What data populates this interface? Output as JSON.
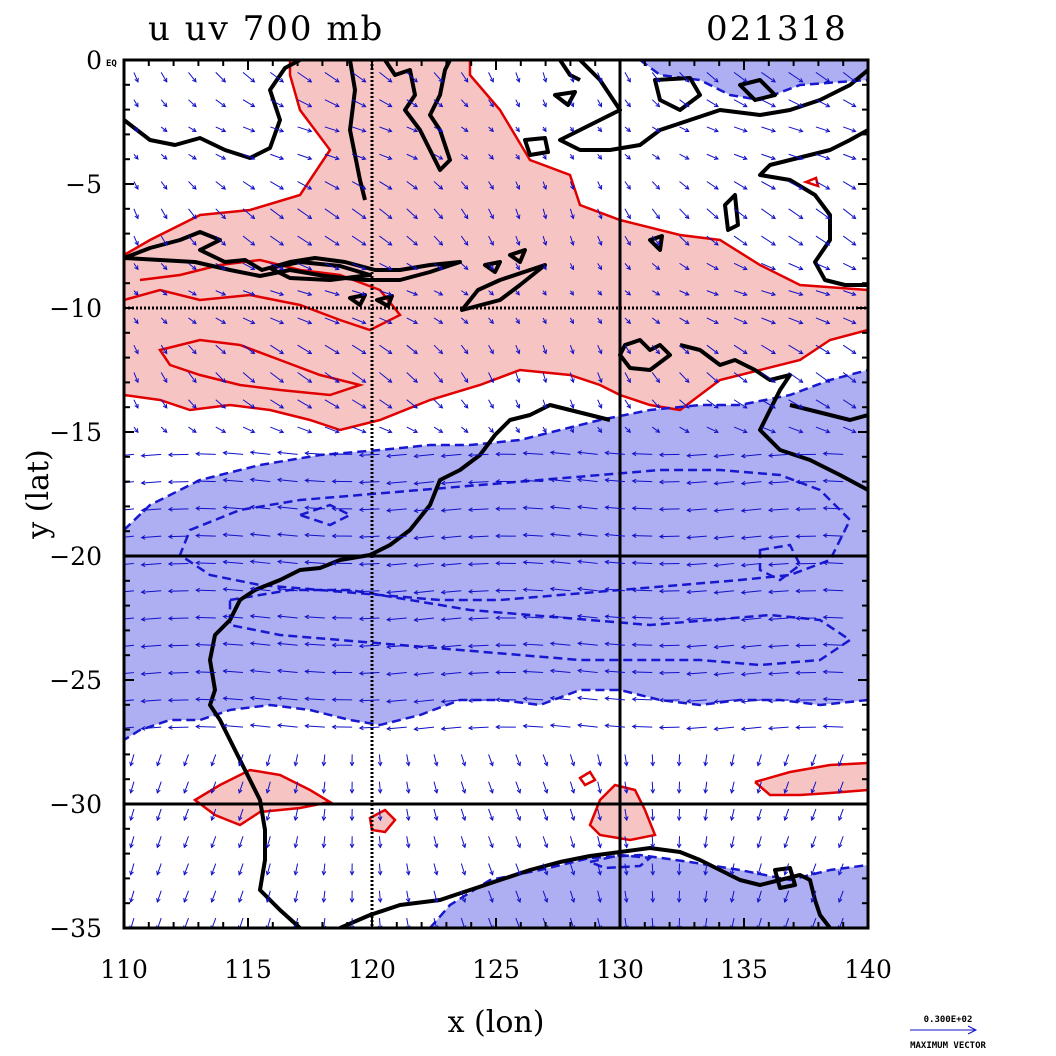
{
  "title": {
    "left": "u uv 700 mb",
    "right": "021318"
  },
  "axes": {
    "xlabel": "x (lon)",
    "ylabel": "y (lat)",
    "x_ticks": [
      "110",
      "115",
      "120",
      "125",
      "130",
      "135",
      "140"
    ],
    "y_ticks": [
      "0",
      "−5",
      "−10",
      "−15",
      "−20",
      "−25",
      "−30",
      "−35"
    ],
    "y_zero_suffix": "EQ",
    "xlim": [
      110,
      140
    ],
    "ylim": [
      -35,
      0
    ],
    "grid_lon": [
      120,
      130
    ],
    "grid_lat": [
      -10,
      -20,
      -30
    ]
  },
  "legend": {
    "vector_value": "0.300E+02",
    "vector_caption": "MAXIMUM VECTOR"
  },
  "colors": {
    "positive_fill": "#f7c4c4",
    "positive_line": "#e00000",
    "negative_fill": "#aeaef2",
    "negative_line": "#1818d0",
    "coast": "#000000",
    "vector": "#1010c8"
  },
  "chart_data": {
    "type": "contour",
    "variable": "u",
    "level": "700 mb",
    "time": "021318",
    "x_range": [
      110,
      140
    ],
    "y_range": [
      -35,
      0
    ],
    "regions": [
      {
        "sign": "positive",
        "lon": [
          110,
          140
        ],
        "lat": [
          -16,
          -2
        ],
        "description_value": "westerly band"
      },
      {
        "sign": "negative",
        "lon": [
          110,
          140
        ],
        "lat": [
          -28,
          -13
        ],
        "description_value": "easterly band"
      },
      {
        "sign": "negative",
        "lon": [
          132,
          140
        ],
        "lat": [
          -2,
          0
        ]
      },
      {
        "sign": "positive",
        "lon": [
          113,
          118
        ],
        "lat": [
          -31,
          -29
        ]
      },
      {
        "sign": "positive",
        "lon": [
          129,
          131
        ],
        "lat": [
          -31.5,
          -29
        ]
      },
      {
        "sign": "positive",
        "lon": [
          136,
          140
        ],
        "lat": [
          -30,
          -28
        ]
      },
      {
        "sign": "negative",
        "lon": [
          124,
          140
        ],
        "lat": [
          -35,
          -31
        ]
      }
    ]
  }
}
